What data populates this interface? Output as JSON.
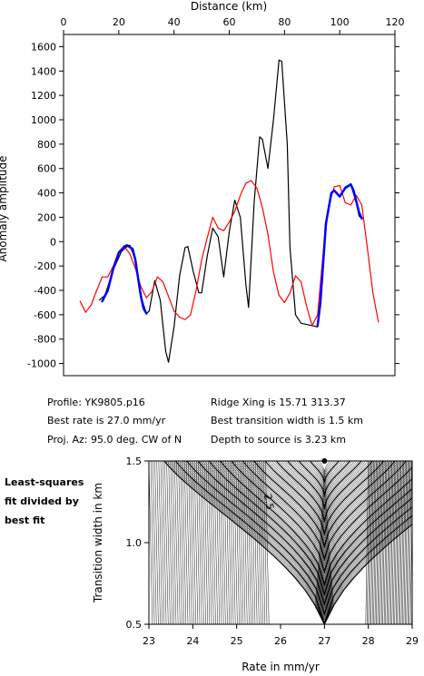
{
  "figure": {
    "info": {
      "profile": "Profile: YK9805.p16",
      "best_rate": "Best rate is 27.0 mm/yr",
      "proj_az": "Proj. Az: 95.0 deg. CW of N",
      "ridge_xing": "Ridge Xing is 15.71 313.37",
      "best_transition": "Best transition width is 1.5 km",
      "depth": "Depth to source is   3.23 km"
    },
    "side_note": [
      "Least-squares",
      "fit divided by",
      "best fit"
    ]
  },
  "chart_data": [
    {
      "type": "line",
      "title": "",
      "xlabel": "Distance (km)",
      "ylabel": "Anomaly amplitude",
      "xlim": [
        0,
        120
      ],
      "ylim": [
        -1100,
        1700
      ],
      "xticks": [
        0,
        20,
        40,
        60,
        80,
        100,
        120
      ],
      "yticks": [
        1600,
        1400,
        1200,
        1000,
        800,
        600,
        400,
        200,
        0,
        -200,
        -400,
        -600,
        -800,
        -1000
      ],
      "x_axis_position": "top",
      "grid": false,
      "series": [
        {
          "color": "#000000",
          "points": [
            [
              13,
              -480
            ],
            [
              15,
              -440
            ],
            [
              18,
              -230
            ],
            [
              21,
              -80
            ],
            [
              23,
              -40
            ],
            [
              24,
              -30
            ],
            [
              26,
              -150
            ],
            [
              28,
              -450
            ],
            [
              30,
              -590
            ],
            [
              31,
              -570
            ],
            [
              33,
              -320
            ],
            [
              35,
              -480
            ],
            [
              37,
              -900
            ],
            [
              38,
              -990
            ],
            [
              40,
              -700
            ],
            [
              42,
              -280
            ],
            [
              44,
              -50
            ],
            [
              45,
              -40
            ],
            [
              47,
              -250
            ],
            [
              49,
              -420
            ],
            [
              50,
              -420
            ],
            [
              52,
              -120
            ],
            [
              54,
              110
            ],
            [
              56,
              40
            ],
            [
              58,
              -290
            ],
            [
              60,
              80
            ],
            [
              62,
              340
            ],
            [
              64,
              200
            ],
            [
              66,
              -350
            ],
            [
              67,
              -540
            ],
            [
              69,
              320
            ],
            [
              71,
              860
            ],
            [
              72,
              840
            ],
            [
              74,
              600
            ],
            [
              76,
              1000
            ],
            [
              78,
              1490
            ],
            [
              79,
              1480
            ],
            [
              81,
              800
            ],
            [
              82,
              -50
            ],
            [
              84,
              -600
            ],
            [
              86,
              -670
            ],
            [
              88,
              -680
            ],
            [
              90,
              -690
            ],
            [
              92,
              -700
            ],
            [
              93,
              -500
            ],
            [
              95,
              150
            ],
            [
              97,
              400
            ],
            [
              98,
              420
            ],
            [
              100,
              370
            ],
            [
              102,
              450
            ],
            [
              104,
              470
            ],
            [
              106,
              320
            ],
            [
              107,
              210
            ],
            [
              108,
              190
            ]
          ]
        },
        {
          "color": "#ff0000",
          "points": [
            [
              6,
              -490
            ],
            [
              8,
              -580
            ],
            [
              10,
              -520
            ],
            [
              12,
              -400
            ],
            [
              14,
              -290
            ],
            [
              16,
              -290
            ],
            [
              18,
              -200
            ],
            [
              20,
              -90
            ],
            [
              22,
              -40
            ],
            [
              24,
              -100
            ],
            [
              26,
              -220
            ],
            [
              28,
              -370
            ],
            [
              30,
              -460
            ],
            [
              32,
              -410
            ],
            [
              34,
              -290
            ],
            [
              36,
              -330
            ],
            [
              38,
              -450
            ],
            [
              40,
              -570
            ],
            [
              42,
              -620
            ],
            [
              44,
              -640
            ],
            [
              46,
              -600
            ],
            [
              48,
              -400
            ],
            [
              50,
              -150
            ],
            [
              52,
              30
            ],
            [
              54,
              200
            ],
            [
              56,
              110
            ],
            [
              58,
              90
            ],
            [
              60,
              160
            ],
            [
              62,
              250
            ],
            [
              64,
              380
            ],
            [
              66,
              480
            ],
            [
              68,
              500
            ],
            [
              70,
              440
            ],
            [
              72,
              280
            ],
            [
              74,
              60
            ],
            [
              76,
              -250
            ],
            [
              78,
              -440
            ],
            [
              80,
              -500
            ],
            [
              82,
              -420
            ],
            [
              84,
              -280
            ],
            [
              86,
              -330
            ],
            [
              88,
              -530
            ],
            [
              90,
              -690
            ],
            [
              92,
              -600
            ],
            [
              94,
              -100
            ],
            [
              96,
              300
            ],
            [
              98,
              450
            ],
            [
              100,
              460
            ],
            [
              102,
              320
            ],
            [
              104,
              300
            ],
            [
              106,
              380
            ],
            [
              108,
              300
            ],
            [
              110,
              -50
            ],
            [
              112,
              -420
            ],
            [
              114,
              -660
            ]
          ]
        },
        {
          "color": "#0000ff",
          "points": [
            [
              14,
              -490
            ],
            [
              16,
              -400
            ],
            [
              18,
              -220
            ],
            [
              20,
              -90
            ],
            [
              22,
              -40
            ],
            [
              23,
              -30
            ],
            [
              25,
              -60
            ],
            [
              26,
              -150
            ],
            [
              27,
              -300
            ],
            [
              28,
              -450
            ],
            [
              29,
              -550
            ],
            [
              30,
              -590
            ]
          ]
        },
        {
          "color": "#0000ff",
          "points": [
            [
              92,
              -690
            ],
            [
              93,
              -500
            ],
            [
              95,
              150
            ],
            [
              97,
              400
            ],
            [
              98,
              420
            ],
            [
              100,
              370
            ],
            [
              102,
              440
            ],
            [
              104,
              470
            ],
            [
              105,
              420
            ],
            [
              107,
              240
            ],
            [
              108,
              190
            ]
          ]
        }
      ]
    },
    {
      "type": "contour",
      "title": "",
      "xlabel": "Rate in mm/yr",
      "ylabel": "Transition width in km",
      "xlim": [
        23,
        29
      ],
      "ylim": [
        0.5,
        1.5
      ],
      "xticks": [
        23,
        24,
        25,
        26,
        27,
        28,
        29
      ],
      "yticks": [
        0.5,
        1.0,
        1.5
      ],
      "grid": false,
      "contour_label": "2.5",
      "best_fit_marker": [
        27.0,
        1.5
      ]
    }
  ]
}
